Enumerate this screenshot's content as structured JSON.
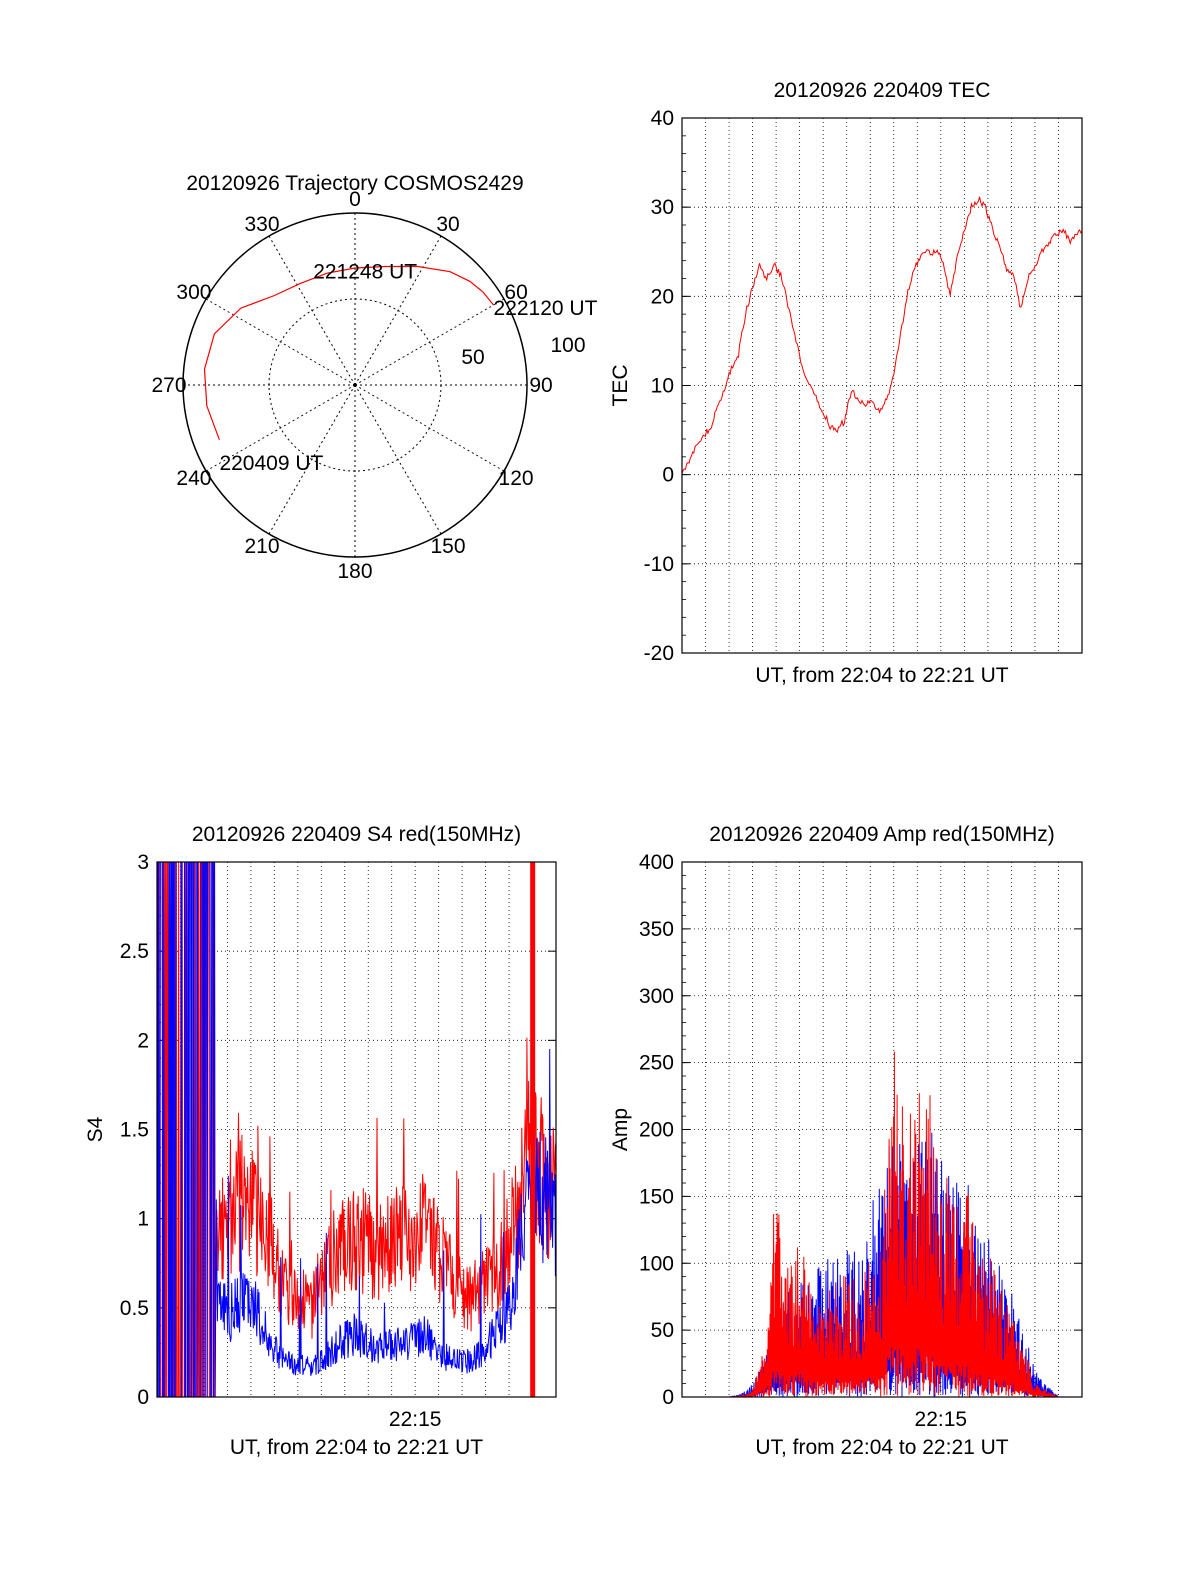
{
  "chart_data": [
    {
      "type": "polar",
      "title": "20120926 Trajectory COSMOS2429",
      "azimuth_labels": [
        "0",
        "30",
        "60",
        "90",
        "120",
        "150",
        "180",
        "210",
        "240",
        "270",
        "300",
        "330"
      ],
      "elevation_labels": [
        "50",
        "100"
      ],
      "track": [
        {
          "az": 248,
          "r": 0.85
        },
        {
          "az": 262,
          "r": 0.87
        },
        {
          "az": 276,
          "r": 0.88
        },
        {
          "az": 290,
          "r": 0.87
        },
        {
          "az": 304,
          "r": 0.8
        },
        {
          "az": 318,
          "r": 0.7
        },
        {
          "az": 332,
          "r": 0.67
        },
        {
          "az": 346,
          "r": 0.67
        },
        {
          "az": 0,
          "r": 0.68
        },
        {
          "az": 14,
          "r": 0.71
        },
        {
          "az": 28,
          "r": 0.78
        },
        {
          "az": 40,
          "r": 0.86
        },
        {
          "az": 48,
          "r": 0.9
        },
        {
          "az": 54,
          "r": 0.92
        },
        {
          "az": 60,
          "r": 0.93
        }
      ],
      "annotations": [
        {
          "text": "220409 UT",
          "az": 248,
          "r": 0.85
        },
        {
          "text": "221248 UT",
          "az": 5,
          "r": 0.68
        },
        {
          "text": "222120 UT",
          "az": 60,
          "r": 0.93
        }
      ],
      "series_color": "#ff0000"
    },
    {
      "type": "line",
      "title": "20120926 220409 TEC",
      "xlabel": "UT, from 22:04 to 22:21 UT",
      "ylabel": "TEC",
      "ylim": [
        -20,
        40
      ],
      "yticks": [
        "-20",
        "-10",
        "0",
        "10",
        "20",
        "30",
        "40"
      ],
      "xlim": [
        0,
        17
      ],
      "grid": true,
      "series": [
        {
          "color": "#ff0000",
          "x": [
            0,
            0.3,
            0.6,
            0.9,
            1.2,
            1.5,
            1.8,
            2.1,
            2.4,
            2.7,
            3.0,
            3.3,
            3.6,
            3.9,
            4.2,
            4.5,
            4.8,
            5.1,
            5.4,
            5.7,
            6.0,
            6.3,
            6.6,
            6.9,
            7.2,
            7.5,
            7.8,
            8.1,
            8.4,
            8.7,
            9.0,
            9.3,
            9.6,
            9.9,
            10.2,
            10.5,
            10.8,
            11.1,
            11.4,
            11.7,
            12.0,
            12.3,
            12.6,
            12.9,
            13.2,
            13.5,
            13.8,
            14.1,
            14.4,
            14.7,
            15.0,
            15.3,
            15.6,
            15.9,
            16.2,
            16.5,
            16.8,
            17.0
          ],
          "y": [
            0.5,
            1.5,
            3.0,
            4.5,
            5.0,
            7.5,
            9.5,
            12.0,
            13.5,
            18.0,
            21.0,
            23.5,
            22.0,
            23.5,
            22.5,
            19.0,
            15.5,
            12.0,
            10.0,
            8.5,
            7.0,
            5.5,
            5.0,
            6.0,
            9.5,
            8.5,
            8.0,
            8.0,
            7.0,
            8.5,
            11.0,
            16.0,
            20.5,
            23.5,
            24.5,
            25.0,
            25.0,
            24.0,
            20.0,
            24.5,
            27.5,
            30.0,
            31.0,
            30.0,
            27.5,
            25.5,
            23.0,
            22.5,
            18.5,
            22.0,
            23.5,
            25.0,
            26.0,
            27.0,
            27.5,
            26.0,
            27.0,
            27.5
          ]
        }
      ]
    },
    {
      "type": "line",
      "title": "20120926 220409 S4 red(150MHz)",
      "xlabel": "UT, from 22:04 to 22:21 UT",
      "ylabel": "S4",
      "ylim": [
        0,
        3
      ],
      "yticks": [
        "0",
        "0.5",
        "1",
        "1.5",
        "2",
        "2.5",
        "3"
      ],
      "xlim": [
        0,
        17
      ],
      "xtick_labels": [
        {
          "x": 11,
          "label": "22:15"
        }
      ],
      "grid": true,
      "series": [
        {
          "color": "#ff0000",
          "x": [
            0.3,
            1.0,
            1.7,
            2.4,
            3.0,
            3.6,
            4.2,
            4.8,
            5.4,
            6.0,
            6.6,
            7.2,
            7.8,
            8.4,
            9.0,
            9.6,
            10.2,
            10.8,
            11.4,
            12.0,
            12.6,
            13.2,
            13.8,
            14.4,
            15.0,
            15.6,
            16.0,
            16.5,
            17.0
          ],
          "y": [
            2.9,
            2.7,
            2.2,
            1.0,
            0.9,
            1.1,
            1.0,
            0.9,
            0.6,
            0.55,
            0.5,
            0.75,
            0.8,
            0.9,
            0.85,
            0.8,
            0.9,
            0.85,
            0.95,
            0.8,
            0.65,
            0.55,
            0.6,
            0.7,
            0.85,
            1.2,
            1.4,
            1.2,
            1.1
          ]
        },
        {
          "color": "#0000ff",
          "x": [
            0.3,
            1.0,
            1.7,
            2.4,
            3.0,
            3.6,
            4.2,
            4.8,
            5.4,
            6.0,
            6.6,
            7.2,
            7.8,
            8.4,
            9.0,
            9.6,
            10.2,
            10.8,
            11.4,
            12.0,
            12.6,
            13.2,
            13.8,
            14.4,
            15.0,
            15.6,
            16.0,
            16.5,
            17.0
          ],
          "y": [
            3.0,
            2.9,
            2.5,
            0.6,
            0.45,
            0.55,
            0.5,
            0.3,
            0.2,
            0.18,
            0.17,
            0.22,
            0.3,
            0.35,
            0.3,
            0.28,
            0.3,
            0.32,
            0.35,
            0.25,
            0.2,
            0.2,
            0.25,
            0.35,
            0.5,
            1.0,
            1.2,
            1.1,
            0.95
          ]
        }
      ]
    },
    {
      "type": "line",
      "title": "20120926 220409 Amp red(150MHz)",
      "xlabel": "UT, from 22:04 to 22:21 UT",
      "ylabel": "Amp",
      "ylim": [
        0,
        400
      ],
      "yticks": [
        "0",
        "50",
        "100",
        "150",
        "200",
        "250",
        "300",
        "350",
        "400"
      ],
      "xlim": [
        0,
        17
      ],
      "xtick_labels": [
        {
          "x": 11,
          "label": "22:15"
        }
      ],
      "grid": true,
      "series": [
        {
          "color": "#0000ff",
          "x": [
            0,
            1,
            2,
            2.5,
            3,
            3.5,
            4,
            4.5,
            5,
            5.5,
            6,
            6.5,
            7,
            7.5,
            8,
            8.5,
            9,
            9.5,
            10,
            10.5,
            11,
            11.5,
            12,
            12.5,
            13,
            13.5,
            14,
            14.5,
            15,
            16,
            17
          ],
          "y": [
            0,
            0,
            0,
            2,
            10,
            30,
            60,
            80,
            90,
            95,
            100,
            110,
            120,
            110,
            150,
            170,
            200,
            180,
            190,
            210,
            180,
            160,
            170,
            140,
            120,
            100,
            80,
            60,
            20,
            0,
            0
          ]
        },
        {
          "color": "#ff0000",
          "x": [
            0,
            1,
            2,
            2.5,
            3,
            3.5,
            4,
            4.5,
            5,
            5.5,
            6,
            6.5,
            7,
            7.5,
            8,
            8.5,
            9,
            9.5,
            10,
            10.5,
            11,
            11.5,
            12,
            12.5,
            13,
            13.5,
            14,
            14.5,
            15,
            16,
            17
          ],
          "y": [
            0,
            0,
            0,
            1,
            5,
            40,
            180,
            100,
            120,
            80,
            70,
            90,
            100,
            80,
            110,
            120,
            280,
            200,
            250,
            230,
            180,
            150,
            200,
            120,
            110,
            90,
            70,
            40,
            10,
            0,
            0
          ]
        }
      ]
    }
  ]
}
